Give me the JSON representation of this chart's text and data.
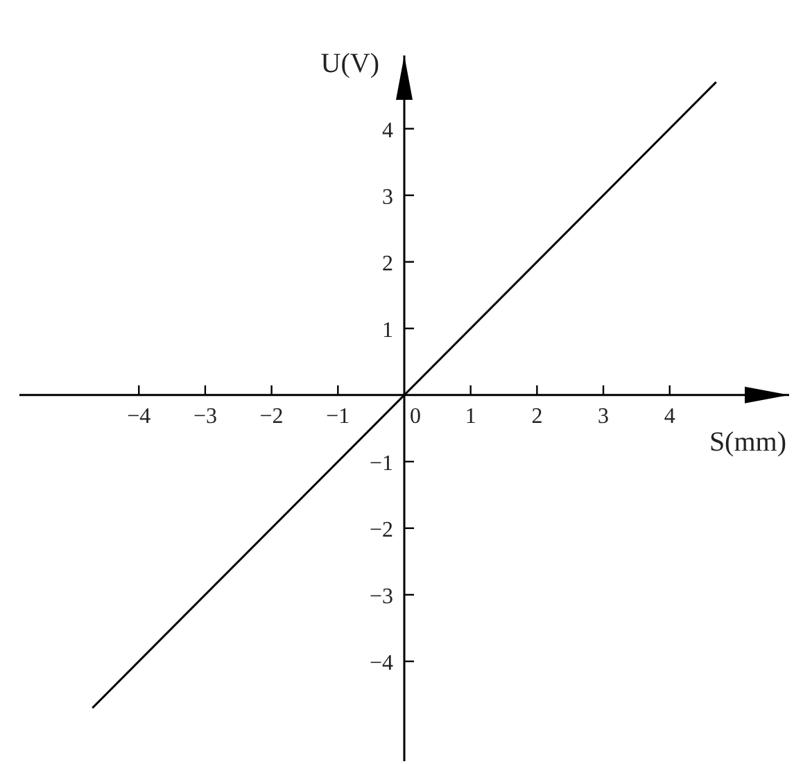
{
  "chart_data": {
    "type": "line",
    "xlabel": "S(mm)",
    "ylabel": "U(V)",
    "x": [
      -4.7,
      4.7
    ],
    "values": [
      -4.7,
      4.7
    ],
    "color": "#000000",
    "marker": "none",
    "line_style": "solid",
    "xlim": [
      -5.8,
      5.8
    ],
    "ylim": [
      -5.5,
      5.1
    ],
    "xticks": [
      -4,
      -3,
      -2,
      -1,
      0,
      1,
      2,
      3,
      4
    ],
    "yticks": [
      -4,
      -3,
      -2,
      -1,
      1,
      2,
      3,
      4
    ]
  }
}
